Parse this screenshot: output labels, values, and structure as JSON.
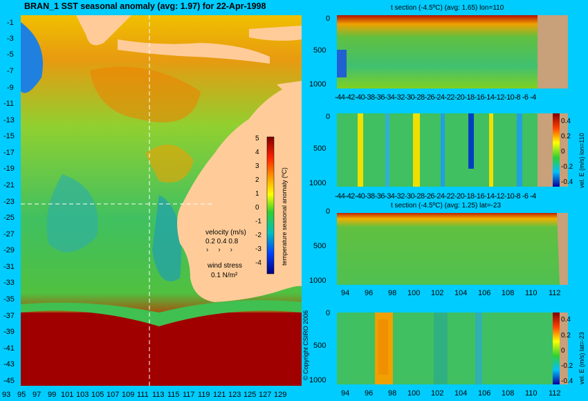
{
  "header": {
    "title": "BRAN_1 SST seasonal anomaly (avg: 1.97) for 22-Apr-1998"
  },
  "map": {
    "lat_labels": [
      "-1",
      "-3",
      "-5",
      "-7",
      "-9",
      "-11",
      "-13",
      "-15",
      "-17",
      "-19",
      "-21",
      "-23",
      "-25",
      "-27",
      "-29",
      "-31",
      "-33",
      "-35",
      "-37",
      "-39",
      "-41",
      "-43",
      "-45"
    ],
    "lon_labels": [
      "93",
      "95",
      "97",
      "99",
      "101",
      "103",
      "105",
      "107",
      "109",
      "111",
      "113",
      "115",
      "117",
      "119",
      "121",
      "123",
      "125",
      "127",
      "129"
    ],
    "colorbar": {
      "label": "temperature seasonal anomaly (ºC)",
      "ticks": [
        "5",
        "4",
        "3",
        "2",
        "1",
        "0",
        "-1",
        "-2",
        "-3",
        "-4"
      ]
    },
    "legend": {
      "velocity_title": "velocity (m/s)",
      "velocity_scale": "0.2 0.4 0.8",
      "wind_title": "wind stress",
      "wind_scale": "0.1 N/m²"
    },
    "copyright": "© Copyright CSIRO 2006"
  },
  "panels": [
    {
      "title": "t section (-4.5ºC) (avg: 1.65) lon=110",
      "y_ticks": [
        "0",
        "500",
        "1000"
      ],
      "x_ticks": [
        "-44",
        "-42",
        "-40",
        "-38",
        "-36",
        "-34",
        "-32",
        "-30",
        "-28",
        "-26",
        "-24",
        "-22",
        "-20",
        "-18",
        "-16",
        "-14",
        "-12",
        "-10",
        "-8",
        "-6",
        "-4"
      ]
    },
    {
      "title": "",
      "y_ticks": [
        "0",
        "500",
        "1000"
      ],
      "x_ticks": [
        "-44",
        "-42",
        "-40",
        "-38",
        "-36",
        "-34",
        "-32",
        "-30",
        "-28",
        "-26",
        "-24",
        "-22",
        "-20",
        "-18",
        "-16",
        "-14",
        "-12",
        "-10",
        "-8",
        "-6",
        "-4"
      ],
      "colorbar_ticks": [
        "0.4",
        "0.2",
        "0",
        "-0.2",
        "-0.4"
      ],
      "colorbar_label": "vel. E (m/s) lon=110"
    },
    {
      "title": "t section (-4.5ºC) (avg: 1.25) lat=-23",
      "y_ticks": [
        "0",
        "500",
        "1000"
      ],
      "x_ticks": [
        "94",
        "96",
        "98",
        "100",
        "102",
        "104",
        "106",
        "108",
        "110",
        "112"
      ]
    },
    {
      "title": "",
      "y_ticks": [
        "0",
        "500",
        "1000"
      ],
      "x_ticks": [
        "94",
        "96",
        "98",
        "100",
        "102",
        "104",
        "106",
        "108",
        "110",
        "112"
      ],
      "colorbar_ticks": [
        "0.4",
        "0.2",
        "0",
        "-0.2",
        "-0.4"
      ],
      "colorbar_label": "vel. E (m/s) lat=-23"
    }
  ],
  "colors": {
    "background": "#00ccff",
    "land": "#ffcc99",
    "land_section": "#c8a07a"
  }
}
